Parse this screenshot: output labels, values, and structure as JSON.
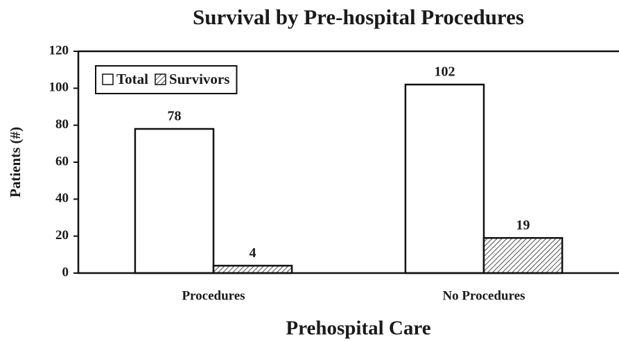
{
  "chart_data": {
    "type": "bar",
    "title": "Survival by Pre-hospital Procedures",
    "x_label": "Prehospital Care",
    "y_label": "Patients (#)",
    "categories": [
      "Procedures",
      "No Procedures"
    ],
    "series": [
      {
        "name": "Total",
        "color": "#ffffff",
        "values": [
          78,
          102
        ]
      },
      {
        "name": "Survivors",
        "color": "#ffffff",
        "pattern": "hatch",
        "values": [
          4,
          19
        ]
      }
    ],
    "ylim": [
      0,
      120
    ],
    "yticks": [
      0,
      20,
      40,
      60,
      80,
      100,
      120
    ],
    "legend": "upper left",
    "grid": false
  }
}
